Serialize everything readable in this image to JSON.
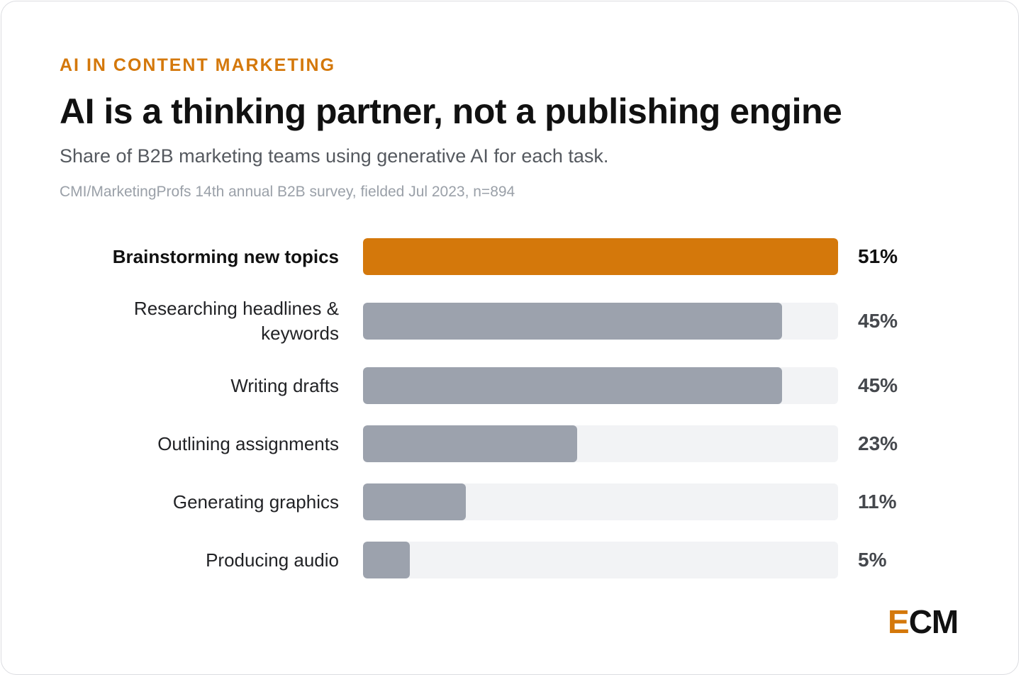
{
  "header": {
    "eyebrow": "AI IN CONTENT MARKETING",
    "title": "AI is a thinking partner, not a publishing engine",
    "subtitle": "Share of B2B marketing teams using generative AI for each task.",
    "source": "CMI/MarketingProfs 14th annual B2B survey, fielded Jul 2023, n=894"
  },
  "logo": {
    "accent": "E",
    "rest": "CM"
  },
  "colors": {
    "highlight": "#d4780b",
    "bar": "#9ca2ad",
    "track": "#f2f3f5"
  },
  "chart_data": {
    "type": "bar",
    "orientation": "horizontal",
    "categories": [
      "Brainstorming new topics",
      "Researching headlines & keywords",
      "Writing drafts",
      "Outlining assignments",
      "Generating graphics",
      "Producing audio"
    ],
    "values": [
      51,
      45,
      45,
      23,
      11,
      5
    ],
    "value_labels": [
      "51%",
      "45%",
      "45%",
      "23%",
      "11%",
      "5%"
    ],
    "xlim": [
      0,
      51
    ],
    "highlight_index": 0,
    "grid": false
  }
}
